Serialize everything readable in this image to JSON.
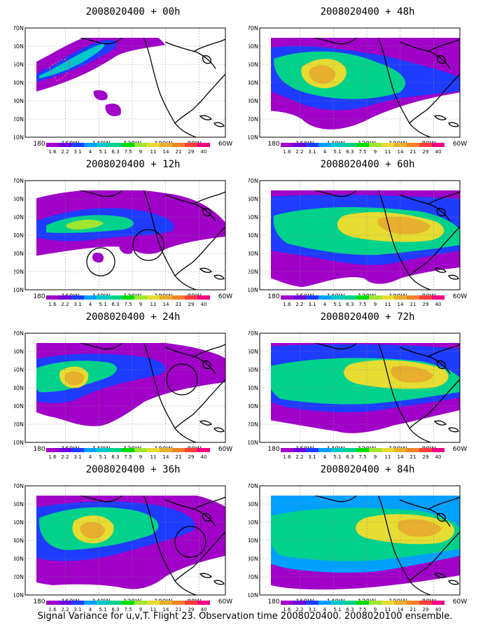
{
  "panels": [
    {
      "title": "2008020400 + 00h"
    },
    {
      "title": "2008020400 + 48h"
    },
    {
      "title": "2008020400 + 12h"
    },
    {
      "title": "2008020400 + 60h"
    },
    {
      "title": "2008020400 + 24h"
    },
    {
      "title": "2008020400 + 72h"
    },
    {
      "title": "2008020400 + 36h"
    },
    {
      "title": "2008020400 + 84h"
    }
  ],
  "axes": {
    "lat_labels": [
      "70N",
      "60N",
      "50N",
      "40N",
      "30N",
      "20N",
      "10N"
    ],
    "lon_labels": [
      "180",
      "160W",
      "140W",
      "120W",
      "100W",
      "80W",
      "60W"
    ]
  },
  "colorbar": {
    "labels": [
      "1.6",
      "2.2",
      "3.1",
      "4",
      "5.1",
      "6.3",
      "7.5",
      "9",
      "11",
      "14",
      "21",
      "29",
      "40"
    ],
    "colors": [
      "#a000c8",
      "#6e00dc",
      "#1e3cff",
      "#00a0ff",
      "#00c8c8",
      "#00d28c",
      "#00dc00",
      "#a0e632",
      "#e6dc32",
      "#e6af2d",
      "#f08228",
      "#fa3c3c",
      "#f00082"
    ]
  },
  "caption": "Signal Variance for u,v,T. Flight 23. Observation time 2008020400. 2008020100 ensemble."
}
